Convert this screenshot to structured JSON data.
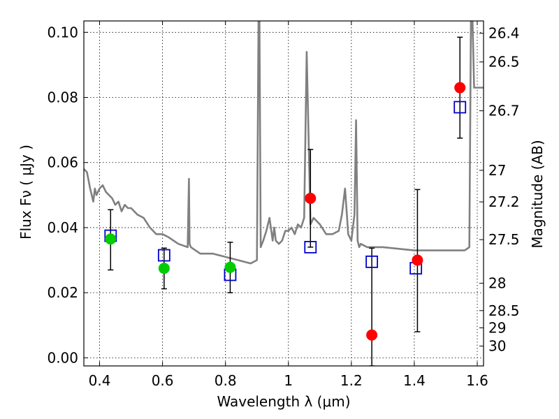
{
  "chart_data": {
    "type": "scatter",
    "xlabel": "Wavelength  λ (μm)",
    "ylabel": "Flux  Fν  ( μJy )",
    "ylabel_right": "Magnitude (AB)",
    "xlim": [
      0.35,
      1.62
    ],
    "ylim": [
      -0.0025,
      0.1035
    ],
    "grid": true,
    "x_ticks": [
      0.4,
      0.6,
      0.8,
      1.0,
      1.2,
      1.4,
      1.6
    ],
    "x_tick_labels": [
      "0.4",
      "0.6",
      "0.8",
      "1",
      "1.2",
      "1.4",
      "1.6"
    ],
    "y_ticks": [
      0.0,
      0.02,
      0.04,
      0.06,
      0.08,
      0.1
    ],
    "y_tick_labels": [
      "0.00",
      "0.02",
      "0.04",
      "0.06",
      "0.08",
      "0.10"
    ],
    "right_ticks": [
      {
        "label": "26.4",
        "flux": 0.0997
      },
      {
        "label": "26.5",
        "flux": 0.0909
      },
      {
        "label": "26.7",
        "flux": 0.0759
      },
      {
        "label": "27",
        "flux": 0.0576
      },
      {
        "label": "27.2",
        "flux": 0.0479
      },
      {
        "label": "27.5",
        "flux": 0.0363
      },
      {
        "label": "28",
        "flux": 0.0229
      },
      {
        "label": "28.5",
        "flux": 0.0145
      },
      {
        "label": "29",
        "flux": 0.0092
      },
      {
        "label": "30",
        "flux": 0.0036
      }
    ],
    "series": [
      {
        "kind": "line",
        "color": "#808080",
        "x": [
          0.35,
          0.36,
          0.37,
          0.38,
          0.385,
          0.39,
          0.4,
          0.41,
          0.42,
          0.43,
          0.44,
          0.45,
          0.46,
          0.47,
          0.48,
          0.49,
          0.5,
          0.52,
          0.54,
          0.56,
          0.58,
          0.6,
          0.62,
          0.65,
          0.68,
          0.684,
          0.686,
          0.69,
          0.72,
          0.76,
          0.8,
          0.84,
          0.88,
          0.9,
          0.905,
          0.908,
          0.912,
          0.916,
          0.92,
          0.93,
          0.94,
          0.95,
          0.955,
          0.96,
          0.97,
          0.98,
          0.99,
          1.0,
          1.01,
          1.02,
          1.03,
          1.04,
          1.05,
          1.058,
          1.064,
          1.07,
          1.08,
          1.1,
          1.12,
          1.14,
          1.16,
          1.17,
          1.18,
          1.185,
          1.19,
          1.2,
          1.21,
          1.215,
          1.22,
          1.225,
          1.23,
          1.25,
          1.3,
          1.4,
          1.5,
          1.55,
          1.56,
          1.575,
          1.58,
          1.585,
          1.59,
          1.62
        ],
        "y": [
          0.058,
          0.057,
          0.052,
          0.048,
          0.052,
          0.05,
          0.052,
          0.053,
          0.051,
          0.05,
          0.049,
          0.047,
          0.048,
          0.045,
          0.047,
          0.046,
          0.046,
          0.044,
          0.043,
          0.04,
          0.038,
          0.038,
          0.037,
          0.035,
          0.034,
          0.055,
          0.035,
          0.034,
          0.032,
          0.032,
          0.031,
          0.03,
          0.029,
          0.03,
          0.104,
          0.104,
          0.034,
          0.035,
          0.036,
          0.039,
          0.043,
          0.036,
          0.04,
          0.036,
          0.035,
          0.036,
          0.039,
          0.039,
          0.04,
          0.038,
          0.041,
          0.04,
          0.043,
          0.094,
          0.068,
          0.041,
          0.043,
          0.041,
          0.038,
          0.038,
          0.039,
          0.044,
          0.052,
          0.045,
          0.038,
          0.036,
          0.044,
          0.073,
          0.036,
          0.034,
          0.035,
          0.034,
          0.034,
          0.033,
          0.033,
          0.033,
          0.033,
          0.034,
          0.104,
          0.104,
          0.083,
          0.083
        ]
      },
      {
        "kind": "points",
        "marker": "open-square",
        "color": "#0000cc",
        "x": [
          0.435,
          0.605,
          0.815,
          1.07,
          1.265,
          1.405,
          1.545
        ],
        "y": [
          0.0375,
          0.0315,
          0.0255,
          0.034,
          0.0295,
          0.0275,
          0.077
        ]
      },
      {
        "kind": "points",
        "marker": "filled-circle",
        "color": "#00cc00",
        "x": [
          0.435,
          0.605,
          0.815
        ],
        "y": [
          0.0365,
          0.0275,
          0.0278
        ]
      },
      {
        "kind": "points",
        "marker": "filled-circle",
        "color": "#ff0000",
        "x": [
          1.07,
          1.265,
          1.41,
          1.545
        ],
        "y": [
          0.049,
          0.007,
          0.03,
          0.083
        ]
      }
    ],
    "error_bars": [
      {
        "x": 0.435,
        "low": 0.027,
        "high": 0.0455
      },
      {
        "x": 0.605,
        "low": 0.0212,
        "high": 0.0337
      },
      {
        "x": 0.815,
        "low": 0.02,
        "high": 0.0355
      },
      {
        "x": 1.07,
        "low": 0.034,
        "high": 0.064
      },
      {
        "x": 1.265,
        "low": -0.0025,
        "high": 0.0337
      },
      {
        "x": 1.41,
        "low": 0.008,
        "high": 0.0517
      },
      {
        "x": 1.545,
        "low": 0.0675,
        "high": 0.0985
      }
    ]
  }
}
